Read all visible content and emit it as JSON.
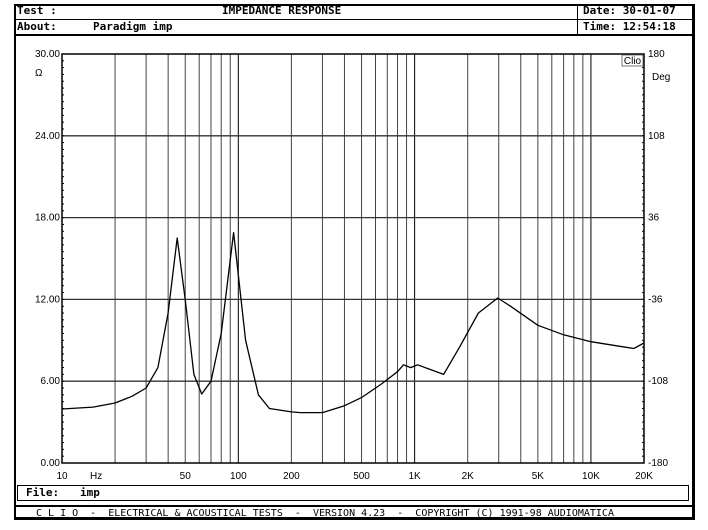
{
  "header": {
    "test_label": "Test :",
    "title": "IMPEDANCE RESPONSE",
    "about_label": "About:",
    "about_value": "Paradigm imp",
    "date": "Date: 30-01-07",
    "time": "Time: 12:54:18"
  },
  "file": {
    "label": "File:",
    "value": "imp"
  },
  "footer": {
    "text": "C L I O  -  ELECTRICAL & ACOUSTICAL TESTS  -  VERSION 4.23  -  COPYRIGHT (C) 1991-98 AUDIOMATICA"
  },
  "chart_data": {
    "type": "line",
    "xscale": "log",
    "xlim": [
      10,
      20000
    ],
    "ylim": [
      0,
      30
    ],
    "y2lim": [
      -180,
      180
    ],
    "grid": true,
    "xunit": "Hz",
    "yunit": "Ω",
    "y2unit": "Deg",
    "logo": "Clio",
    "x_tick_labels": [
      {
        "v": 10,
        "t": "10"
      },
      {
        "v": 50,
        "t": "50"
      },
      {
        "v": 100,
        "t": "100"
      },
      {
        "v": 200,
        "t": "200"
      },
      {
        "v": 500,
        "t": "500"
      },
      {
        "v": 1000,
        "t": "1K"
      },
      {
        "v": 2000,
        "t": "2K"
      },
      {
        "v": 5000,
        "t": "5K"
      },
      {
        "v": 10000,
        "t": "10K"
      },
      {
        "v": 20000,
        "t": "20K"
      }
    ],
    "y_tick_labels": [
      "0.00",
      "6.00",
      "12.00",
      "18.00",
      "24.00",
      "30.00"
    ],
    "y2_tick_labels": [
      "-180",
      "-108",
      "-36",
      "36",
      "108",
      "180"
    ],
    "series": [
      {
        "color": "#000000",
        "x": [
          10,
          15,
          20,
          25,
          30,
          35,
          40,
          45,
          50,
          56,
          62,
          70,
          80,
          94,
          110,
          130,
          150,
          200,
          225,
          300,
          400,
          500,
          650,
          800,
          865,
          950,
          1040,
          1200,
          1460,
          1800,
          2300,
          2960,
          3500,
          5000,
          7000,
          10000,
          14000,
          17500,
          20000
        ],
        "y": [
          3.96,
          4.1,
          4.4,
          4.9,
          5.5,
          7.0,
          11.0,
          16.5,
          12.0,
          6.5,
          5.06,
          6.0,
          9.5,
          16.9,
          9.0,
          5.0,
          4.0,
          3.75,
          3.7,
          3.7,
          4.2,
          4.8,
          5.8,
          6.7,
          7.2,
          7.0,
          7.2,
          6.9,
          6.5,
          8.5,
          11.0,
          12.1,
          11.5,
          10.1,
          9.4,
          8.9,
          8.6,
          8.4,
          8.8
        ]
      }
    ]
  }
}
